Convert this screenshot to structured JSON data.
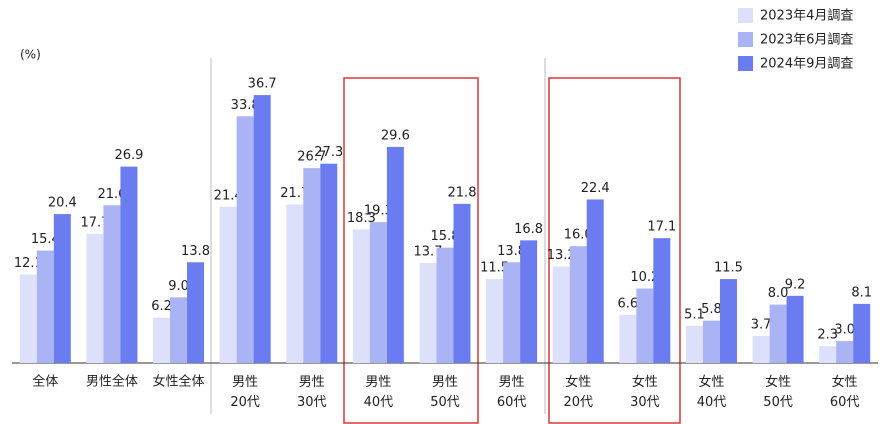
{
  "chart_data": {
    "type": "bar",
    "unit": "(%)",
    "categories": [
      "全体",
      "男性全体",
      "女性全体",
      "男性\n20代",
      "男性\n30代",
      "男性\n40代",
      "男性\n50代",
      "男性\n60代",
      "女性\n20代",
      "女性\n30代",
      "女性\n40代",
      "女性\n50代",
      "女性\n60代"
    ],
    "series": [
      {
        "name": "2023年4月調査",
        "color": "#dde0fa",
        "values": [
          12.1,
          17.7,
          6.2,
          21.4,
          21.7,
          18.3,
          13.7,
          11.5,
          13.2,
          6.6,
          5.1,
          3.7,
          2.3
        ],
        "value_labels": [
          "12.1",
          "17.7",
          "6.2",
          "21.4",
          "21.7",
          "18.3",
          "13.7",
          "11.5",
          "13.2",
          "6.6",
          "5.1",
          "3.7",
          "2.3"
        ]
      },
      {
        "name": "2023年6月調査",
        "color": "#aab3f4",
        "values": [
          15.4,
          21.6,
          9.0,
          33.8,
          26.7,
          19.3,
          15.8,
          13.8,
          16.0,
          10.2,
          5.8,
          8.0,
          3.0
        ],
        "value_labels": [
          "15.4",
          "21.6",
          "9.0",
          "33.8",
          "26.7",
          "19.3",
          "15.8",
          "13.8",
          "16.0",
          "10.2",
          "5.8",
          "8.0",
          "3.0"
        ]
      },
      {
        "name": "2024年9月調査",
        "color": "#6b7cf0",
        "values": [
          20.4,
          26.9,
          13.8,
          36.7,
          27.3,
          29.6,
          21.8,
          16.8,
          22.4,
          17.1,
          11.5,
          9.2,
          8.1
        ],
        "value_labels": [
          "20.4",
          "26.9",
          "13.8",
          "36.7",
          "27.3",
          "29.6",
          "21.8",
          "16.8",
          "22.4",
          "17.1",
          "11.5",
          "9.2",
          "8.1"
        ]
      }
    ],
    "ylim": [
      0,
      40
    ],
    "legend": "top-right"
  }
}
